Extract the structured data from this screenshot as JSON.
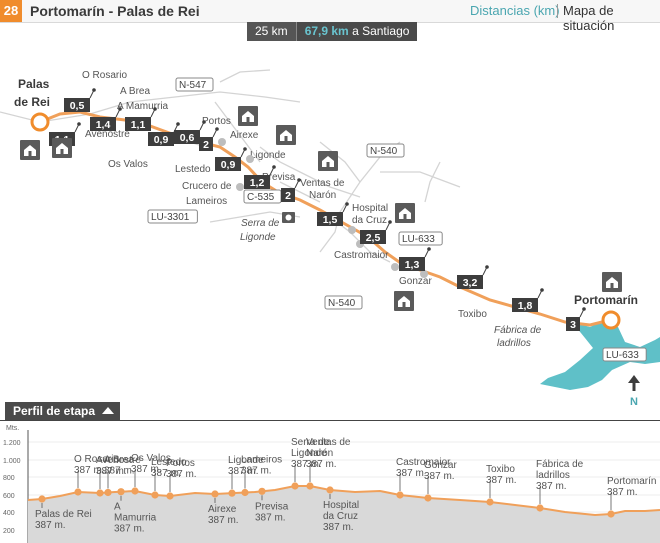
{
  "header": {
    "stage_number": "28",
    "title": "Portomarín - Palas de Rei",
    "distances_link": "Distancias (km)",
    "map_link": "Mapa de situación"
  },
  "infobar": {
    "km": "25 km",
    "to_santiago_value": "67,9 km",
    "to_santiago_label": " a Santiago"
  },
  "map": {
    "towns": [
      {
        "id": "palas1",
        "label": "Palas"
      },
      {
        "id": "palas2",
        "label": "de Rei"
      },
      {
        "id": "portomarin",
        "label": "Portomarín"
      }
    ],
    "villages": [
      "O Rosario",
      "A Brea",
      "A Mamurria",
      "Avenostre",
      "Portos",
      "Airexe",
      "Os Valos",
      "Lestedo",
      "Ligonde",
      "Crucero de",
      "Lameiros",
      "Previsa",
      "Ventas de",
      "Narón",
      "Hospital",
      "da Cruz",
      "Castromaior",
      "Gonzar",
      "Toxibo",
      "Serra de",
      "Ligonde",
      "Fábrica de",
      "ladrillos"
    ],
    "roads": [
      "N-547",
      "N-540",
      "C-535",
      "LU-3301",
      "LU-633",
      "N-540",
      "LU-633"
    ],
    "distances": [
      "0,5",
      "1,1",
      "1,4",
      "1,1",
      "0,9",
      "0,6",
      "2",
      "0,9",
      "1,2",
      "2",
      "1,5",
      "2,5",
      "1,3",
      "3,2",
      "1,8",
      "3"
    ],
    "north_label": "N"
  },
  "profile": {
    "tab_label": "Perfil de etapa",
    "axis_title": "Mts.",
    "y_ticks": [
      "1.200",
      "1.000",
      "800",
      "600",
      "400",
      "200"
    ],
    "places": [
      {
        "name": [
          "Palas de Rei"
        ],
        "alt": "387 m.",
        "pos": "below"
      },
      {
        "name": [
          "O Rosario"
        ],
        "alt": "387 m.",
        "pos": "above"
      },
      {
        "name": [
          "Avenostre"
        ],
        "alt": "387 m.",
        "pos": "above"
      },
      {
        "name": [
          "A Brea"
        ],
        "alt": "387 m.",
        "pos": "above"
      },
      {
        "name": [
          "A",
          "Mamurria"
        ],
        "alt": "387 m.",
        "pos": "below"
      },
      {
        "name": [
          "Os Valos"
        ],
        "alt": "387 m.",
        "pos": "above"
      },
      {
        "name": [
          "Lestedo"
        ],
        "alt": "387 m.",
        "pos": "above"
      },
      {
        "name": [
          "Portos"
        ],
        "alt": "387 m.",
        "pos": "above"
      },
      {
        "name": [
          "Airexe"
        ],
        "alt": "387 m.",
        "pos": "below"
      },
      {
        "name": [
          "Ligonde"
        ],
        "alt": "387 m.",
        "pos": "above"
      },
      {
        "name": [
          "Lameiros"
        ],
        "alt": "387 m.",
        "pos": "above"
      },
      {
        "name": [
          "Previsa"
        ],
        "alt": "387 m.",
        "pos": "below"
      },
      {
        "name": [
          "Serra de",
          "Ligonde"
        ],
        "alt": "387 m.",
        "pos": "above"
      },
      {
        "name": [
          "Ventas de",
          "Narón"
        ],
        "alt": "387 m.",
        "pos": "above"
      },
      {
        "name": [
          "Hospital",
          "da Cruz"
        ],
        "alt": "387 m.",
        "pos": "below"
      },
      {
        "name": [
          "Castromaior"
        ],
        "alt": "387 m.",
        "pos": "above"
      },
      {
        "name": [
          "Gonzar"
        ],
        "alt": "387 m.",
        "pos": "above"
      },
      {
        "name": [
          "Toxibo"
        ],
        "alt": "387 m.",
        "pos": "above"
      },
      {
        "name": [
          "Fábrica de",
          "ladrillos"
        ],
        "alt": "387 m.",
        "pos": "above"
      },
      {
        "name": [
          "Portomarín"
        ],
        "alt": "387 m.",
        "pos": "above"
      }
    ]
  },
  "colors": {
    "route": "#f0a05a",
    "accent": "#f08c2c",
    "water": "#5fc0c8",
    "badge": "#3d3d3d",
    "link": "#4aa6b0"
  }
}
